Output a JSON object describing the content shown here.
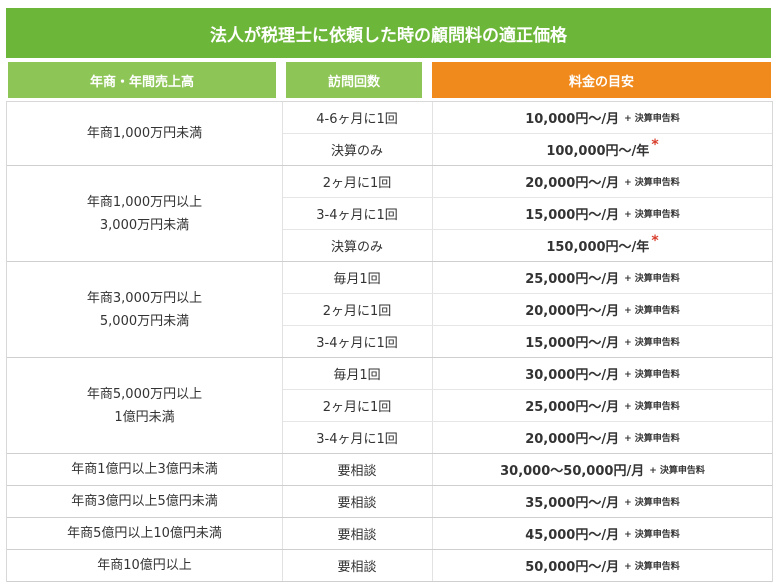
{
  "title": "法人が税理士に依頼した時の顧問料の適正価格",
  "header": [
    "年商・年間売上高",
    "訪問回数",
    "料金の目安"
  ],
  "groups": [
    {
      "revenue": [
        "年商1,000万円未満"
      ],
      "rows": [
        {
          "visits": "4-6ヶ月に1回",
          "price": "10,000円～/月",
          "note": "+ 決算申告料"
        },
        {
          "visits": "決算のみ",
          "price": "100,000円～/年",
          "mark": "*"
        }
      ]
    },
    {
      "revenue": [
        "年商1,000万円以上",
        "3,000万円未満"
      ],
      "rows": [
        {
          "visits": "2ヶ月に1回",
          "price": "20,000円～/月",
          "note": "+ 決算申告料"
        },
        {
          "visits": "3-4ヶ月に1回",
          "price": "15,000円～/月",
          "note": "+ 決算申告料"
        },
        {
          "visits": "決算のみ",
          "price": "150,000円～/年",
          "mark": "*"
        }
      ]
    },
    {
      "revenue": [
        "年商3,000万円以上",
        "5,000万円未満"
      ],
      "rows": [
        {
          "visits": "毎月1回",
          "price": "25,000円～/月",
          "note": "+ 決算申告料"
        },
        {
          "visits": "2ヶ月に1回",
          "price": "20,000円～/月",
          "note": "+ 決算申告料"
        },
        {
          "visits": "3-4ヶ月に1回",
          "price": "15,000円～/月",
          "note": "+ 決算申告料"
        }
      ]
    },
    {
      "revenue": [
        "年商5,000万円以上",
        "1億円未満"
      ],
      "rows": [
        {
          "visits": "毎月1回",
          "price": "30,000円～/月",
          "note": "+ 決算申告料"
        },
        {
          "visits": "2ヶ月に1回",
          "price": "25,000円～/月",
          "note": "+ 決算申告料"
        },
        {
          "visits": "3-4ヶ月に1回",
          "price": "20,000円～/月",
          "note": "+ 決算申告料"
        }
      ]
    },
    {
      "revenue": [
        "年商1億円以上3億円未満"
      ],
      "rows": [
        {
          "visits": "要相談",
          "price": "30,000～50,000円/月",
          "note": "+ 決算申告料"
        }
      ]
    },
    {
      "revenue": [
        "年商3億円以上5億円未満"
      ],
      "rows": [
        {
          "visits": "要相談",
          "price": "35,000円～/月",
          "note": "+ 決算申告料"
        }
      ]
    },
    {
      "revenue": [
        "年商5億円以上10億円未満"
      ],
      "rows": [
        {
          "visits": "要相談",
          "price": "45,000円～/月",
          "note": "+ 決算申告料"
        }
      ]
    },
    {
      "revenue": [
        "年商10億円以上"
      ],
      "rows": [
        {
          "visits": "要相談",
          "price": "50,000円～/月",
          "note": "+ 決算申告料"
        }
      ]
    }
  ]
}
